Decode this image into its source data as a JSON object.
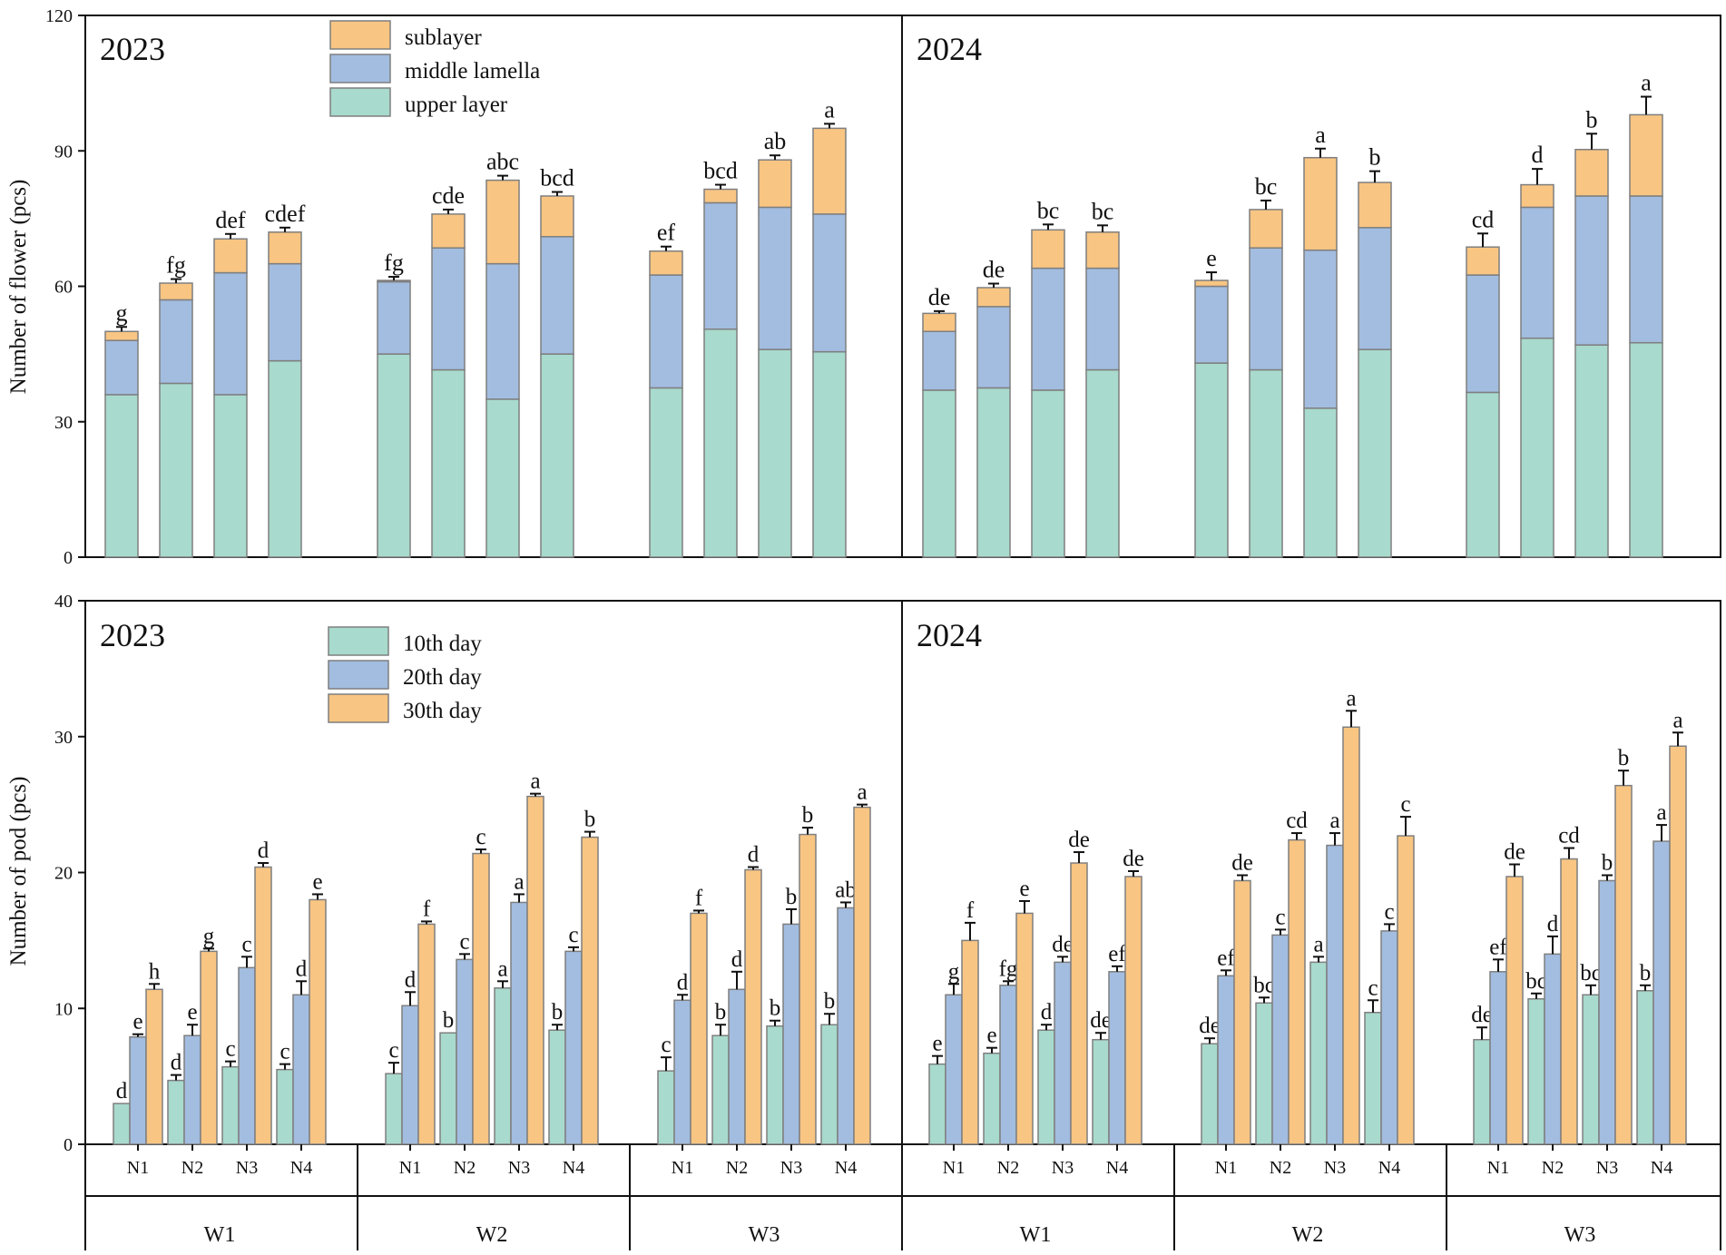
{
  "colors": {
    "teal": "#a8dacd",
    "blue": "#a2bde0",
    "orange": "#f8c583",
    "edge": "#7f7f7f",
    "axis": "#111111"
  },
  "chart_data": [
    {
      "type": "bar",
      "stacked": true,
      "ylabel": "Number of flower (pcs)",
      "ylim": [
        0,
        120
      ],
      "yticks": [
        0,
        30,
        60,
        90,
        120
      ],
      "year_labels": [
        "2023",
        "2024"
      ],
      "legend": [
        "sublayer",
        "middle lamella",
        "upper layer"
      ],
      "legend_position": "top-left",
      "groups": [
        {
          "year": "2023",
          "w": "W1",
          "n": "N1",
          "upper": 36,
          "middle": 12,
          "sub": 2,
          "err": 1.0,
          "letter": "g"
        },
        {
          "year": "2023",
          "w": "W1",
          "n": "N2",
          "upper": 38.5,
          "middle": 18.5,
          "sub": 3.7,
          "err": 0.9,
          "letter": "fg"
        },
        {
          "year": "2023",
          "w": "W1",
          "n": "N3",
          "upper": 36,
          "middle": 27,
          "sub": 7.5,
          "err": 1.1,
          "letter": "def"
        },
        {
          "year": "2023",
          "w": "W1",
          "n": "N4",
          "upper": 43.5,
          "middle": 21.5,
          "sub": 7,
          "err": 1.0,
          "letter": "cdef"
        },
        {
          "year": "2023",
          "w": "W2",
          "n": "N1",
          "upper": 45,
          "middle": 16,
          "sub": 0.3,
          "err": 0.8,
          "letter": "fg"
        },
        {
          "year": "2023",
          "w": "W2",
          "n": "N2",
          "upper": 41.5,
          "middle": 27,
          "sub": 7.5,
          "err": 1.0,
          "letter": "cde"
        },
        {
          "year": "2023",
          "w": "W2",
          "n": "N3",
          "upper": 35,
          "middle": 30,
          "sub": 18.5,
          "err": 1.0,
          "letter": "abc"
        },
        {
          "year": "2023",
          "w": "W2",
          "n": "N4",
          "upper": 45,
          "middle": 26,
          "sub": 9,
          "err": 0.9,
          "letter": "bcd"
        },
        {
          "year": "2023",
          "w": "W3",
          "n": "N1",
          "upper": 37.5,
          "middle": 25,
          "sub": 5.3,
          "err": 1.0,
          "letter": "ef"
        },
        {
          "year": "2023",
          "w": "W3",
          "n": "N2",
          "upper": 50.5,
          "middle": 28,
          "sub": 3,
          "err": 1.0,
          "letter": "bcd"
        },
        {
          "year": "2023",
          "w": "W3",
          "n": "N3",
          "upper": 46,
          "middle": 31.5,
          "sub": 10.5,
          "err": 1.0,
          "letter": "ab"
        },
        {
          "year": "2023",
          "w": "W3",
          "n": "N4",
          "upper": 45.5,
          "middle": 30.5,
          "sub": 19,
          "err": 1.0,
          "letter": "a"
        },
        {
          "year": "2024",
          "w": "W1",
          "n": "N1",
          "upper": 37,
          "middle": 13,
          "sub": 4,
          "err": 0.5,
          "letter": "de"
        },
        {
          "year": "2024",
          "w": "W1",
          "n": "N2",
          "upper": 37.5,
          "middle": 18,
          "sub": 4.2,
          "err": 0.9,
          "letter": "de"
        },
        {
          "year": "2024",
          "w": "W1",
          "n": "N3",
          "upper": 37,
          "middle": 27,
          "sub": 8.5,
          "err": 1.2,
          "letter": "bc"
        },
        {
          "year": "2024",
          "w": "W1",
          "n": "N4",
          "upper": 41.5,
          "middle": 22.5,
          "sub": 8,
          "err": 1.5,
          "letter": "bc"
        },
        {
          "year": "2024",
          "w": "W2",
          "n": "N1",
          "upper": 43,
          "middle": 17,
          "sub": 1.3,
          "err": 1.8,
          "letter": "e"
        },
        {
          "year": "2024",
          "w": "W2",
          "n": "N2",
          "upper": 41.5,
          "middle": 27,
          "sub": 8.5,
          "err": 2.0,
          "letter": "bc"
        },
        {
          "year": "2024",
          "w": "W2",
          "n": "N3",
          "upper": 33,
          "middle": 35,
          "sub": 20.5,
          "err": 2.0,
          "letter": "a"
        },
        {
          "year": "2024",
          "w": "W2",
          "n": "N4",
          "upper": 46,
          "middle": 27,
          "sub": 10,
          "err": 2.5,
          "letter": "b"
        },
        {
          "year": "2024",
          "w": "W3",
          "n": "N1",
          "upper": 36.5,
          "middle": 26,
          "sub": 6.2,
          "err": 3.0,
          "letter": "cd"
        },
        {
          "year": "2024",
          "w": "W3",
          "n": "N2",
          "upper": 48.5,
          "middle": 29,
          "sub": 5,
          "err": 3.5,
          "letter": "d"
        },
        {
          "year": "2024",
          "w": "W3",
          "n": "N3",
          "upper": 47,
          "middle": 33,
          "sub": 10.3,
          "err": 3.5,
          "letter": "b"
        },
        {
          "year": "2024",
          "w": "W3",
          "n": "N4",
          "upper": 47.5,
          "middle": 32.5,
          "sub": 18,
          "err": 4.0,
          "letter": "a"
        }
      ]
    },
    {
      "type": "bar",
      "stacked": false,
      "ylabel": "Number of pod (pcs)",
      "ylim": [
        0,
        40
      ],
      "yticks": [
        0,
        10,
        20,
        30,
        40
      ],
      "year_labels": [
        "2023",
        "2024"
      ],
      "legend": [
        "10th day",
        "20th day",
        "30th day"
      ],
      "legend_position": "top-left",
      "x_categories": [
        "N1",
        "N2",
        "N3",
        "N4"
      ],
      "w_labels": [
        "W1",
        "W2",
        "W3",
        "W1",
        "W2",
        "W3"
      ],
      "groups": [
        {
          "year": "2023",
          "w": "W1",
          "n": "N1",
          "values": [
            3.0,
            7.9,
            11.4
          ],
          "errs": [
            0.0,
            0.2,
            0.4
          ],
          "letters": [
            "d",
            "e",
            "h"
          ]
        },
        {
          "year": "2023",
          "w": "W1",
          "n": "N2",
          "values": [
            4.7,
            8.0,
            14.2
          ],
          "errs": [
            0.4,
            0.8,
            0.2
          ],
          "letters": [
            "d",
            "e",
            "g"
          ]
        },
        {
          "year": "2023",
          "w": "W1",
          "n": "N3",
          "values": [
            5.7,
            13.0,
            20.4
          ],
          "errs": [
            0.4,
            0.8,
            0.3
          ],
          "letters": [
            "c",
            "c",
            "d"
          ]
        },
        {
          "year": "2023",
          "w": "W1",
          "n": "N4",
          "values": [
            5.5,
            11.0,
            18.0
          ],
          "errs": [
            0.4,
            1.0,
            0.4
          ],
          "letters": [
            "c",
            "d",
            "e"
          ]
        },
        {
          "year": "2023",
          "w": "W2",
          "n": "N1",
          "values": [
            5.2,
            10.2,
            16.2
          ],
          "errs": [
            0.8,
            1.0,
            0.2
          ],
          "letters": [
            "c",
            "d",
            "f"
          ]
        },
        {
          "year": "2023",
          "w": "W2",
          "n": "N2",
          "values": [
            8.2,
            13.6,
            21.4
          ],
          "errs": [
            0.0,
            0.4,
            0.3
          ],
          "letters": [
            "b",
            "c",
            "c"
          ]
        },
        {
          "year": "2023",
          "w": "W2",
          "n": "N3",
          "values": [
            11.5,
            17.8,
            25.6
          ],
          "errs": [
            0.5,
            0.6,
            0.2
          ],
          "letters": [
            "a",
            "a",
            "a"
          ]
        },
        {
          "year": "2023",
          "w": "W2",
          "n": "N4",
          "values": [
            8.4,
            14.2,
            22.6
          ],
          "errs": [
            0.4,
            0.3,
            0.4
          ],
          "letters": [
            "b",
            "c",
            "b"
          ]
        },
        {
          "year": "2023",
          "w": "W3",
          "n": "N1",
          "values": [
            5.4,
            10.6,
            17.0
          ],
          "errs": [
            1.0,
            0.4,
            0.2
          ],
          "letters": [
            "c",
            "d",
            "f"
          ]
        },
        {
          "year": "2023",
          "w": "W3",
          "n": "N2",
          "values": [
            8.0,
            11.4,
            20.2
          ],
          "errs": [
            0.8,
            1.3,
            0.2
          ],
          "letters": [
            "b",
            "d",
            "d"
          ]
        },
        {
          "year": "2023",
          "w": "W3",
          "n": "N3",
          "values": [
            8.7,
            16.2,
            22.8
          ],
          "errs": [
            0.4,
            1.1,
            0.5
          ],
          "letters": [
            "b",
            "b",
            "b"
          ]
        },
        {
          "year": "2023",
          "w": "W3",
          "n": "N4",
          "values": [
            8.8,
            17.4,
            24.8
          ],
          "errs": [
            0.8,
            0.4,
            0.2
          ],
          "letters": [
            "b",
            "ab",
            "a"
          ]
        },
        {
          "year": "2024",
          "w": "W1",
          "n": "N1",
          "values": [
            5.9,
            11.0,
            15.0
          ],
          "errs": [
            0.6,
            0.8,
            1.3
          ],
          "letters": [
            "e",
            "g",
            "f"
          ]
        },
        {
          "year": "2024",
          "w": "W1",
          "n": "N2",
          "values": [
            6.7,
            11.7,
            17.0
          ],
          "errs": [
            0.4,
            0.3,
            0.9
          ],
          "letters": [
            "e",
            "fg",
            "e"
          ]
        },
        {
          "year": "2024",
          "w": "W1",
          "n": "N3",
          "values": [
            8.4,
            13.4,
            20.7
          ],
          "errs": [
            0.4,
            0.4,
            0.8
          ],
          "letters": [
            "d",
            "de",
            "de"
          ]
        },
        {
          "year": "2024",
          "w": "W1",
          "n": "N4",
          "values": [
            7.7,
            12.7,
            19.7
          ],
          "errs": [
            0.5,
            0.4,
            0.4
          ],
          "letters": [
            "de",
            "ef",
            "de"
          ]
        },
        {
          "year": "2024",
          "w": "W2",
          "n": "N1",
          "values": [
            7.4,
            12.4,
            19.4
          ],
          "errs": [
            0.4,
            0.4,
            0.4
          ],
          "letters": [
            "de",
            "ef",
            "de"
          ]
        },
        {
          "year": "2024",
          "w": "W2",
          "n": "N2",
          "values": [
            10.4,
            15.4,
            22.4
          ],
          "errs": [
            0.4,
            0.4,
            0.5
          ],
          "letters": [
            "bc",
            "c",
            "cd"
          ]
        },
        {
          "year": "2024",
          "w": "W2",
          "n": "N3",
          "values": [
            13.4,
            22.0,
            30.7
          ],
          "errs": [
            0.4,
            0.9,
            1.2
          ],
          "letters": [
            "a",
            "a",
            "a"
          ]
        },
        {
          "year": "2024",
          "w": "W2",
          "n": "N4",
          "values": [
            9.7,
            15.7,
            22.7
          ],
          "errs": [
            0.9,
            0.5,
            1.4
          ],
          "letters": [
            "c",
            "c",
            "c"
          ]
        },
        {
          "year": "2024",
          "w": "W3",
          "n": "N1",
          "values": [
            7.7,
            12.7,
            19.7
          ],
          "errs": [
            0.9,
            0.9,
            0.9
          ],
          "letters": [
            "de",
            "ef",
            "de"
          ]
        },
        {
          "year": "2024",
          "w": "W3",
          "n": "N2",
          "values": [
            10.7,
            14.0,
            21.0
          ],
          "errs": [
            0.4,
            1.3,
            0.8
          ],
          "letters": [
            "bc",
            "d",
            "cd"
          ]
        },
        {
          "year": "2024",
          "w": "W3",
          "n": "N3",
          "values": [
            11.0,
            19.4,
            26.4
          ],
          "errs": [
            0.7,
            0.4,
            1.1
          ],
          "letters": [
            "bc",
            "b",
            "b"
          ]
        },
        {
          "year": "2024",
          "w": "W3",
          "n": "N4",
          "values": [
            11.3,
            22.3,
            29.3
          ],
          "errs": [
            0.4,
            1.2,
            1.0
          ],
          "letters": [
            "b",
            "a",
            "a"
          ]
        }
      ]
    }
  ]
}
